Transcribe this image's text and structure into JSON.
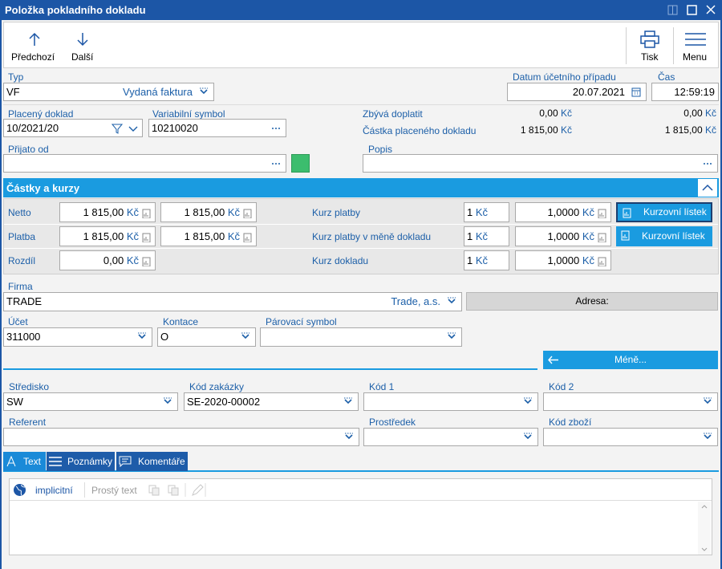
{
  "window": {
    "title": "Položka pokladního dokladu"
  },
  "toolbar": {
    "previous": "Předchozí",
    "next": "Další",
    "print": "Tisk",
    "menu": "Menu"
  },
  "header": {
    "type": {
      "label": "Typ",
      "code": "VF",
      "name": "Vydaná faktura"
    },
    "date": {
      "label": "Datum účetního případu",
      "value": "20.07.2021"
    },
    "time": {
      "label": "Čas",
      "value": "12:59:19"
    },
    "paid_document": {
      "label": "Placený doklad",
      "value": "10/2021/20"
    },
    "variable_symbol": {
      "label": "Variabilní symbol",
      "value": "10210020"
    },
    "remaining": {
      "label": "Zbývá doplatit",
      "amounts": [
        {
          "value": "0,00",
          "unit": "Kč"
        },
        {
          "value": "0,00",
          "unit": "Kč"
        }
      ]
    },
    "paid_amount": {
      "label": "Částka placeného dokladu",
      "amounts": [
        {
          "value": "1 815,00",
          "unit": "Kč"
        },
        {
          "value": "1 815,00",
          "unit": "Kč"
        }
      ]
    },
    "received_from": {
      "label": "Přijato od"
    },
    "description": {
      "label": "Popis"
    }
  },
  "amounts_section": {
    "title": "Částky a kurzy",
    "rows": [
      {
        "label": "Netto",
        "amounts": [
          {
            "value": "1 815,00",
            "unit": "Kč"
          },
          {
            "value": "1 815,00",
            "unit": "Kč"
          }
        ],
        "rate_label": "Kurz platby",
        "quantity": {
          "value": "1",
          "unit": "Kč"
        },
        "rate": {
          "value": "1,0000",
          "unit": "Kč"
        },
        "button": "Kurzovní lístek"
      },
      {
        "label": "Platba",
        "amounts": [
          {
            "value": "1 815,00",
            "unit": "Kč"
          },
          {
            "value": "1 815,00",
            "unit": "Kč"
          }
        ],
        "rate_label": "Kurz platby v měně dokladu",
        "quantity": {
          "value": "1",
          "unit": "Kč"
        },
        "rate": {
          "value": "1,0000",
          "unit": "Kč"
        },
        "button": "Kurzovní lístek"
      },
      {
        "label": "Rozdíl",
        "amounts": [
          {
            "value": "0,00",
            "unit": "Kč"
          }
        ],
        "rate_label": "Kurz dokladu",
        "quantity": {
          "value": "1",
          "unit": "Kč"
        },
        "rate": {
          "value": "1,0000",
          "unit": "Kč"
        }
      }
    ]
  },
  "details": {
    "firm": {
      "label": "Firma",
      "code": "TRADE",
      "name": "Trade, a.s."
    },
    "address": "Adresa:",
    "account": {
      "label": "Účet",
      "value": "311000"
    },
    "contra": {
      "label": "Kontace",
      "value": "O"
    },
    "pairing_symbol": {
      "label": "Párovací symbol"
    },
    "less_button": "Méně...",
    "centre": {
      "label": "Středisko",
      "value": "SW"
    },
    "order_code": {
      "label": "Kód zakázky",
      "value": "SE-2020-00002"
    },
    "code1": {
      "label": "Kód 1"
    },
    "code2": {
      "label": "Kód 2"
    },
    "referent": {
      "label": "Referent"
    },
    "means": {
      "label": "Prostředek"
    },
    "goods_code": {
      "label": "Kód zboží"
    }
  },
  "tabs": [
    "Text",
    "Poznámky",
    "Komentáře"
  ],
  "editor": {
    "language": "implicitní",
    "format": "Prostý text"
  }
}
